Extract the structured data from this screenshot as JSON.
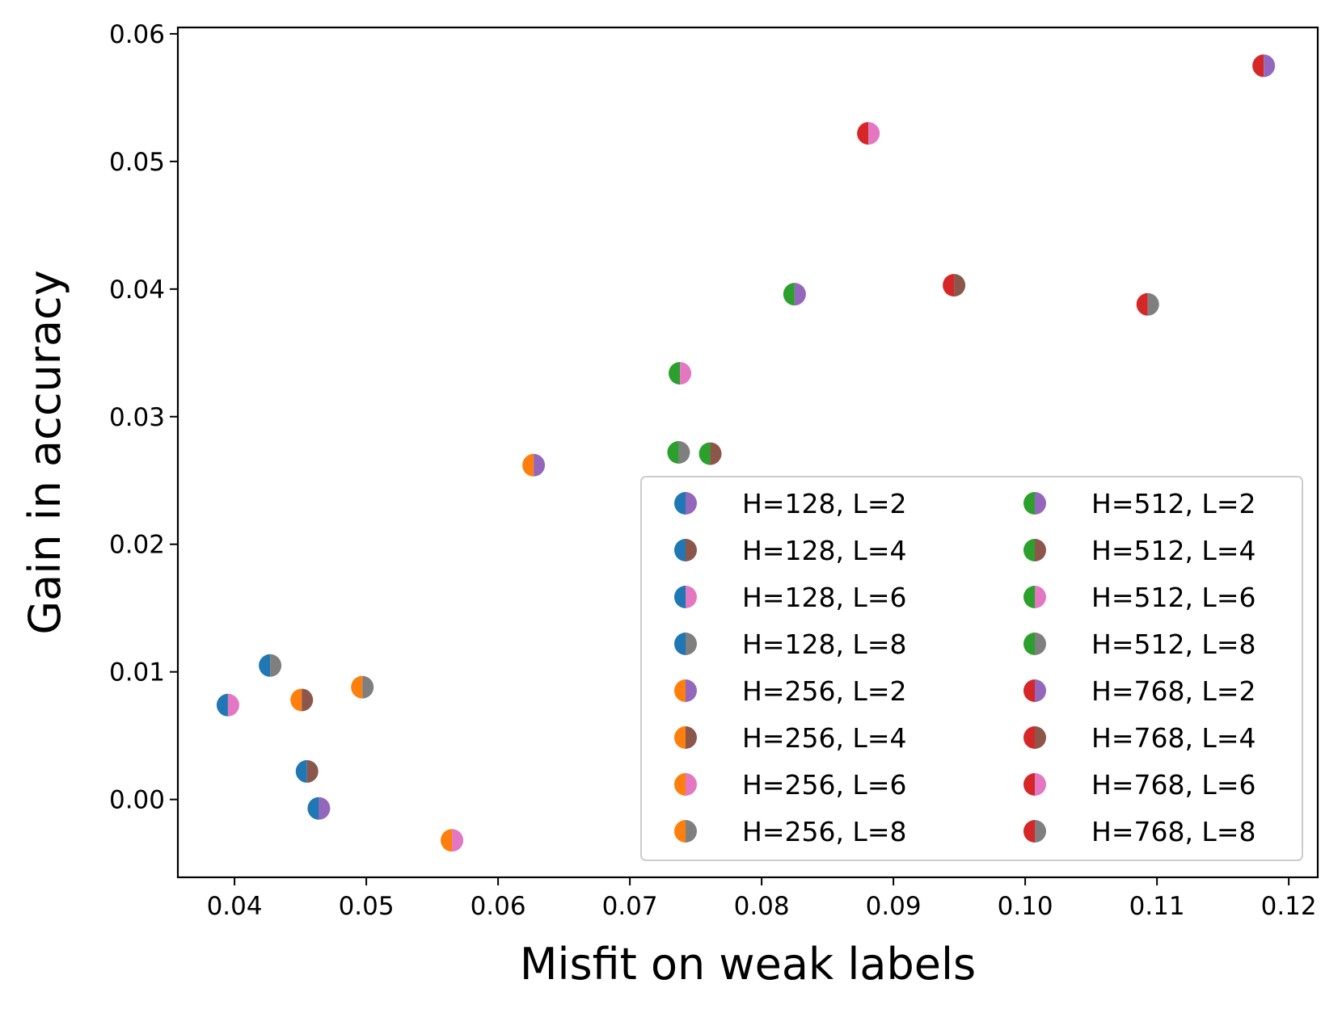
{
  "chart_data": {
    "type": "scatter",
    "title": "",
    "xlabel": "Misfit on weak labels",
    "ylabel": "Gain in accuracy",
    "xlim": [
      0.0357,
      0.1222
    ],
    "ylim": [
      -0.0061,
      0.0605
    ],
    "xticks": [
      0.04,
      0.05,
      0.06,
      0.07,
      0.08,
      0.09,
      0.1,
      0.11,
      0.12
    ],
    "xtick_labels": [
      "0.04",
      "0.05",
      "0.06",
      "0.07",
      "0.08",
      "0.09",
      "0.10",
      "0.11",
      "0.12"
    ],
    "yticks": [
      0.0,
      0.01,
      0.02,
      0.03,
      0.04,
      0.05,
      0.06
    ],
    "ytick_labels": [
      "0.00",
      "0.01",
      "0.02",
      "0.03",
      "0.04",
      "0.05",
      "0.06"
    ],
    "grid": false,
    "legend_placement": "lower-right",
    "marker_style": "half-filled circle (left color = hidden size H, right color = layers L)",
    "colors": {
      "H128": "#1f77b4",
      "H256": "#ff7f0e",
      "H512": "#2ca02c",
      "H768": "#d62728",
      "L2": "#9467bd",
      "L4": "#8c564b",
      "L6": "#e377c2",
      "L8": "#7f7f7f"
    },
    "series": [
      {
        "name": "H=128, L=2",
        "left": "H128",
        "right": "L2",
        "x": 0.0464,
        "y": -0.0007
      },
      {
        "name": "H=128, L=4",
        "left": "H128",
        "right": "L4",
        "x": 0.0455,
        "y": 0.0022
      },
      {
        "name": "H=128, L=6",
        "left": "H128",
        "right": "L6",
        "x": 0.0395,
        "y": 0.0074
      },
      {
        "name": "H=128, L=8",
        "left": "H128",
        "right": "L8",
        "x": 0.0427,
        "y": 0.0105
      },
      {
        "name": "H=256, L=2",
        "left": "H256",
        "right": "L2",
        "x": 0.0627,
        "y": 0.0262
      },
      {
        "name": "H=256, L=4",
        "left": "H256",
        "right": "L4",
        "x": 0.0451,
        "y": 0.0078
      },
      {
        "name": "H=256, L=6",
        "left": "H256",
        "right": "L6",
        "x": 0.0565,
        "y": -0.0032
      },
      {
        "name": "H=256, L=8",
        "left": "H256",
        "right": "L8",
        "x": 0.0497,
        "y": 0.0088
      },
      {
        "name": "H=512, L=2",
        "left": "H512",
        "right": "L2",
        "x": 0.0825,
        "y": 0.0396
      },
      {
        "name": "H=512, L=4",
        "left": "H512",
        "right": "L4",
        "x": 0.0761,
        "y": 0.0271
      },
      {
        "name": "H=512, L=6",
        "left": "H512",
        "right": "L6",
        "x": 0.0738,
        "y": 0.0334
      },
      {
        "name": "H=512, L=8",
        "left": "H512",
        "right": "L8",
        "x": 0.0737,
        "y": 0.0272
      },
      {
        "name": "H=768, L=2",
        "left": "H768",
        "right": "L2",
        "x": 0.1181,
        "y": 0.0575
      },
      {
        "name": "H=768, L=4",
        "left": "H768",
        "right": "L4",
        "x": 0.0946,
        "y": 0.0403
      },
      {
        "name": "H=768, L=6",
        "left": "H768",
        "right": "L6",
        "x": 0.0881,
        "y": 0.0522
      },
      {
        "name": "H=768, L=8",
        "left": "H768",
        "right": "L8",
        "x": 0.1093,
        "y": 0.0388
      }
    ]
  }
}
